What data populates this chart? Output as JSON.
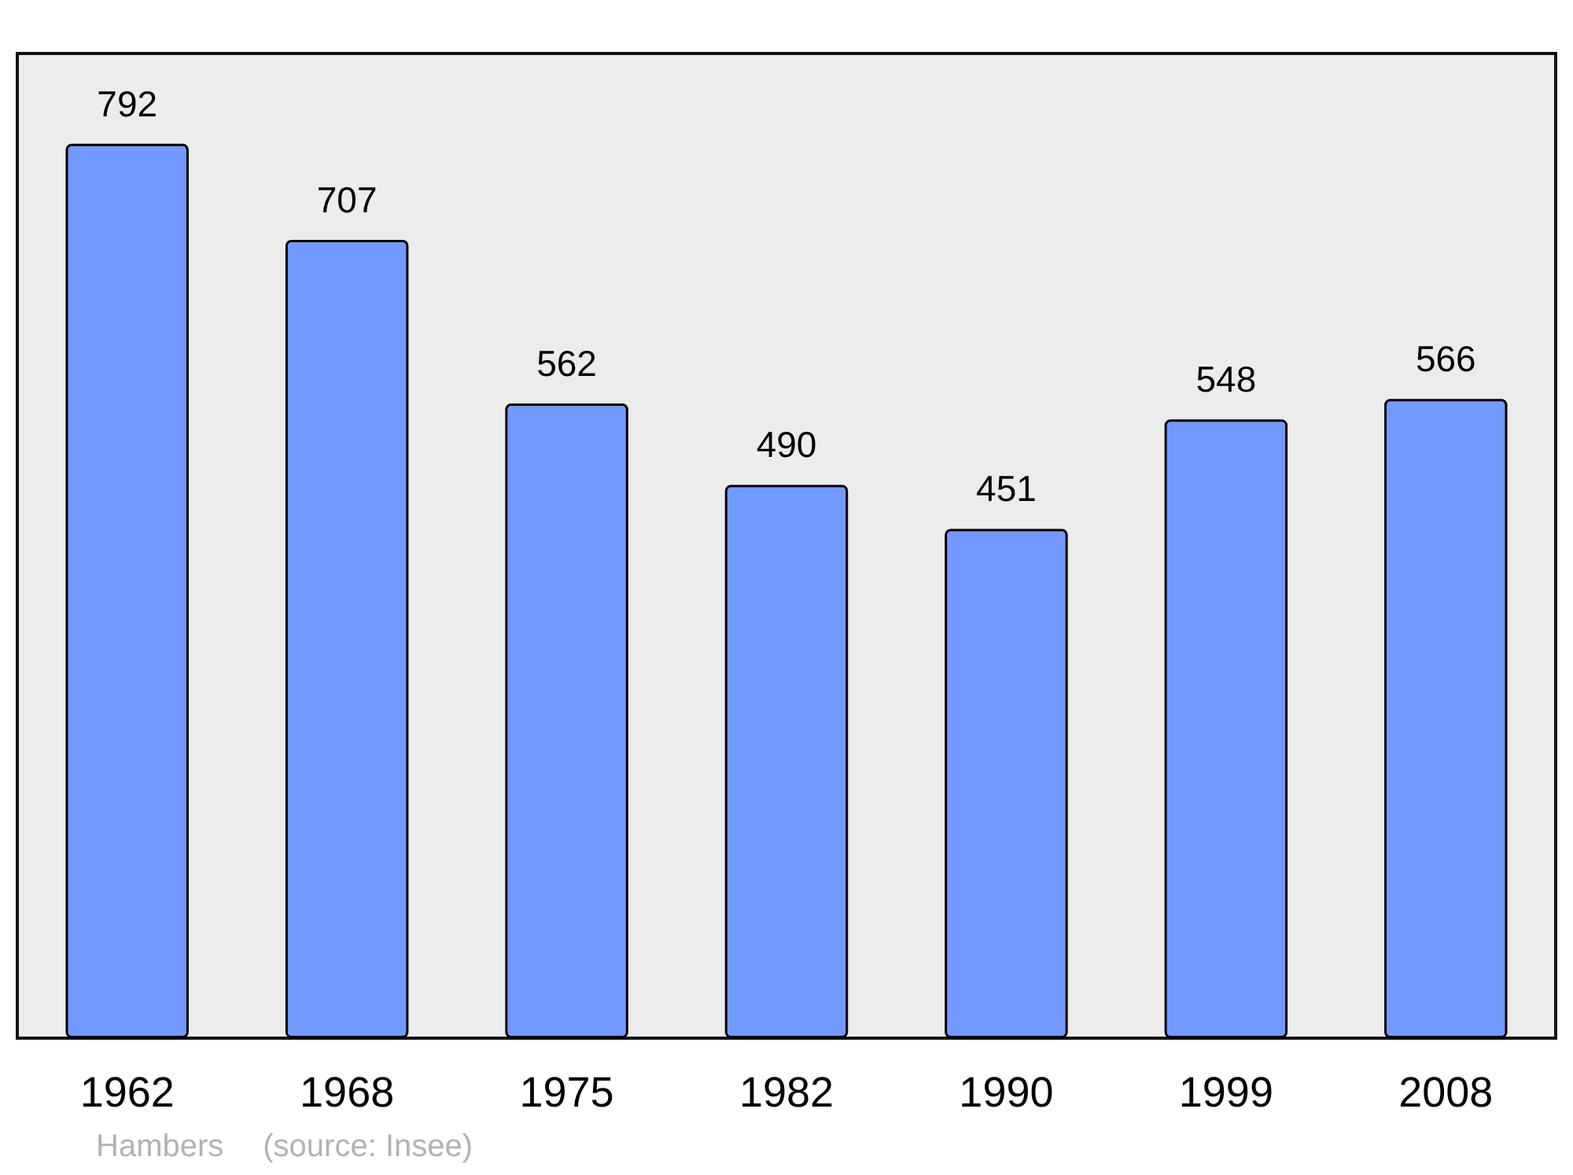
{
  "chart_data": {
    "type": "bar",
    "categories": [
      "1962",
      "1968",
      "1975",
      "1982",
      "1990",
      "1999",
      "2008"
    ],
    "values": [
      792,
      707,
      562,
      490,
      451,
      548,
      566
    ],
    "color": "#7399ff",
    "ylim": [
      0,
      872
    ],
    "tick_labels": "x",
    "data_labels": true,
    "annotations": [
      "Hambers",
      "(source: Insee)"
    ]
  }
}
